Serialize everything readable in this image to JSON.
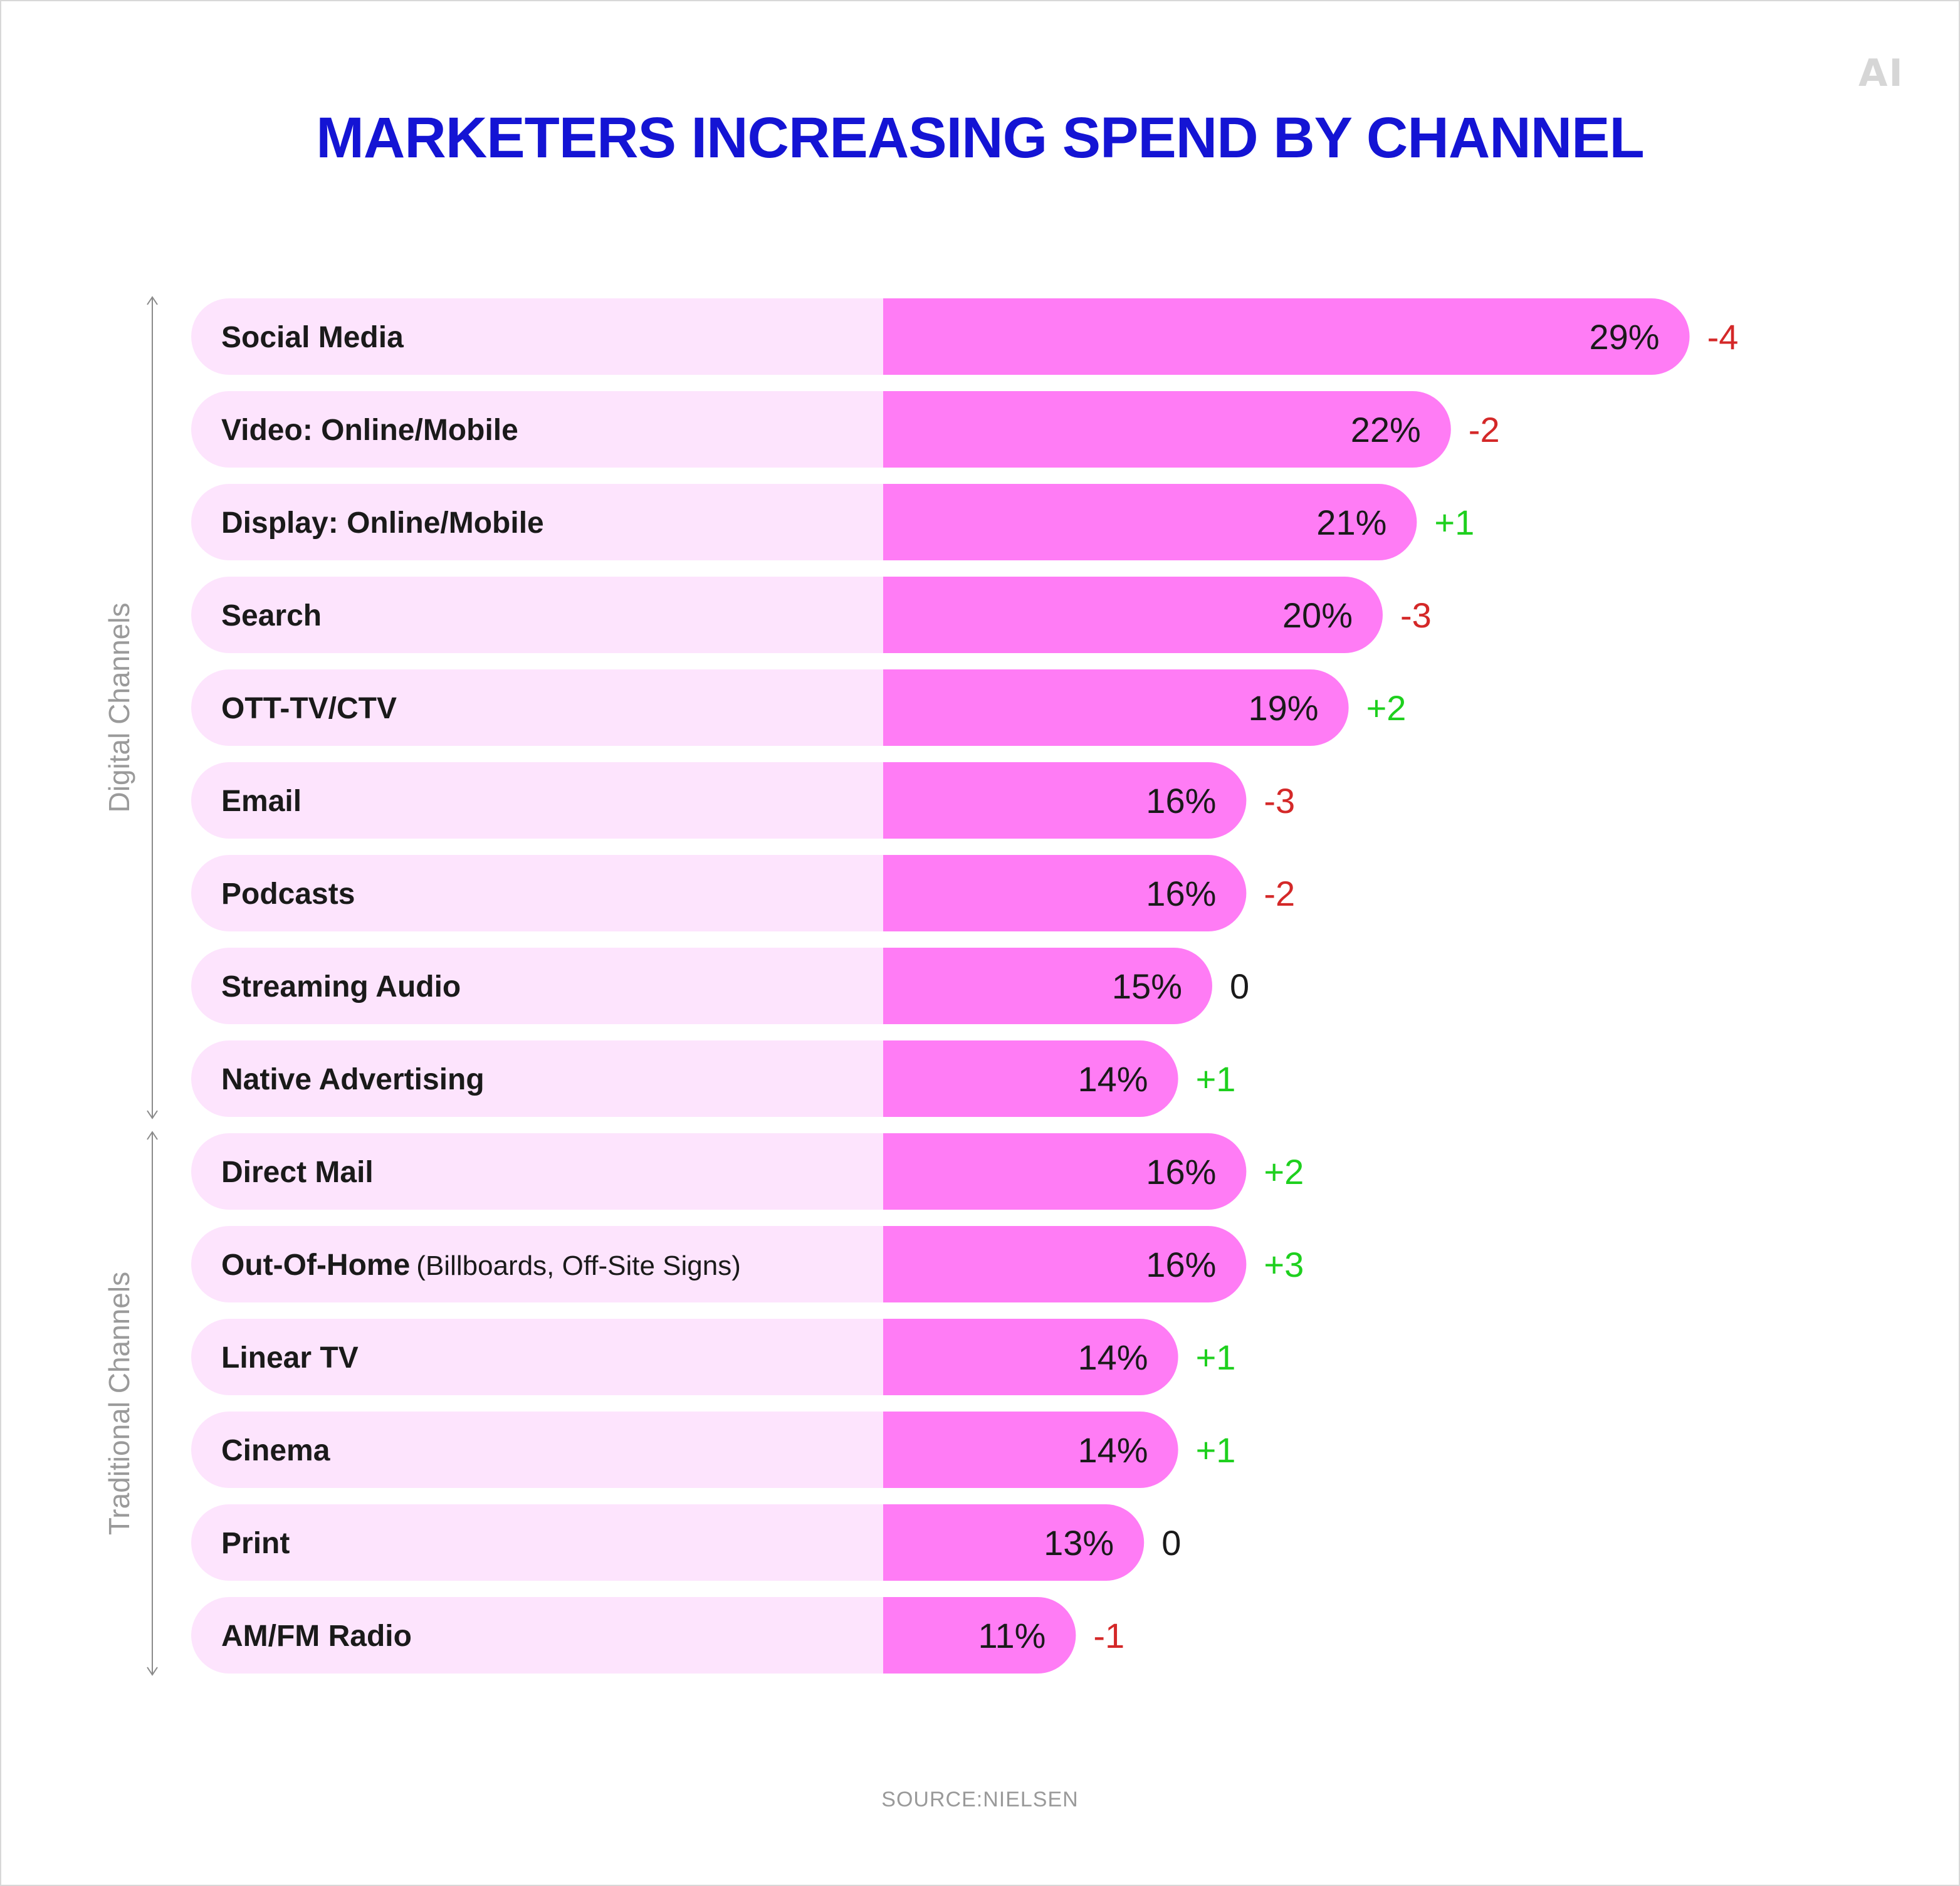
{
  "logo": "AI",
  "source": "SOURCE:NIELSEN",
  "colors": {
    "title": "#1414d4",
    "bar_fill": "#ff7cf5",
    "bar_track": "#fde4fd",
    "positive": "#1ed01e",
    "negative": "#d42828",
    "neutral": "#1a1a1a"
  },
  "chart_data": {
    "type": "bar",
    "orientation": "horizontal",
    "title": "MARKETERS INCREASING SPEND BY CHANNEL",
    "unit": "%",
    "groups": [
      {
        "label": "Digital Channels",
        "start": 0,
        "end": 8
      },
      {
        "label": "Traditional Channels",
        "start": 9,
        "end": 14
      }
    ],
    "categories": [
      "Social Media",
      "Video: Online/Mobile",
      "Display: Online/Mobile",
      "Search",
      "OTT-TV/CTV",
      "Email",
      "Podcasts",
      "Streaming Audio",
      "Native Advertising",
      "Direct Mail",
      "Out-Of-Home",
      "Linear TV",
      "Cinema",
      "Print",
      "AM/FM Radio"
    ],
    "category_notes": [
      "",
      "",
      "",
      "",
      "",
      "",
      "",
      "",
      "",
      "",
      "(Billboards, Off-Site Signs)",
      "",
      "",
      "",
      ""
    ],
    "values": [
      29,
      22,
      21,
      20,
      19,
      16,
      16,
      15,
      14,
      16,
      16,
      14,
      14,
      13,
      11
    ],
    "value_labels": [
      "29%",
      "22%",
      "21%",
      "20%",
      "19%",
      "16%",
      "16%",
      "15%",
      "14%",
      "16%",
      "16%",
      "14%",
      "14%",
      "13%",
      "11%"
    ],
    "changes": [
      -4,
      -2,
      1,
      -3,
      2,
      -3,
      -2,
      0,
      1,
      2,
      3,
      1,
      1,
      0,
      -1
    ],
    "change_labels": [
      "-4",
      "-2",
      "+1",
      "-3",
      "+2",
      "-3",
      "-2",
      "0",
      "+1",
      "+2",
      "+3",
      "+1",
      "+1",
      "0",
      "-1"
    ]
  }
}
